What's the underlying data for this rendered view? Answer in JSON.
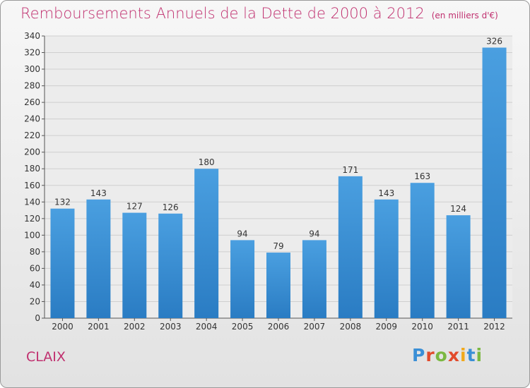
{
  "header": {
    "title": "Remboursements Annuels de la Dette de 2000 à 2012",
    "unit": "(en milliers d'€)"
  },
  "footer": {
    "commune": "CLAIX",
    "brand": "Proxiti",
    "brand_colors": [
      "#3a8fd6",
      "#e24b2c",
      "#7bb842",
      "#e24b2c",
      "#f2a91b",
      "#3a8fd6",
      "#7bb842"
    ]
  },
  "chart_data": {
    "type": "bar",
    "title": "Remboursements Annuels de la Dette de 2000 à 2012",
    "subtitle": "(en milliers d'€)",
    "categories": [
      "2000",
      "2001",
      "2002",
      "2003",
      "2004",
      "2005",
      "2006",
      "2007",
      "2008",
      "2009",
      "2010",
      "2011",
      "2012"
    ],
    "values": [
      132,
      143,
      127,
      126,
      180,
      94,
      79,
      94,
      171,
      143,
      163,
      124,
      326
    ],
    "ylim": [
      0,
      340
    ],
    "yticks": [
      0,
      20,
      40,
      60,
      80,
      100,
      120,
      140,
      160,
      180,
      200,
      220,
      240,
      260,
      280,
      300,
      320,
      340
    ],
    "grid": true,
    "bar_color": "#4a9fe0",
    "bar_color_dark": "#2a7cc3",
    "grid_color": "#cfcfcf",
    "axis_color": "#555555",
    "text_color": "#333333"
  }
}
